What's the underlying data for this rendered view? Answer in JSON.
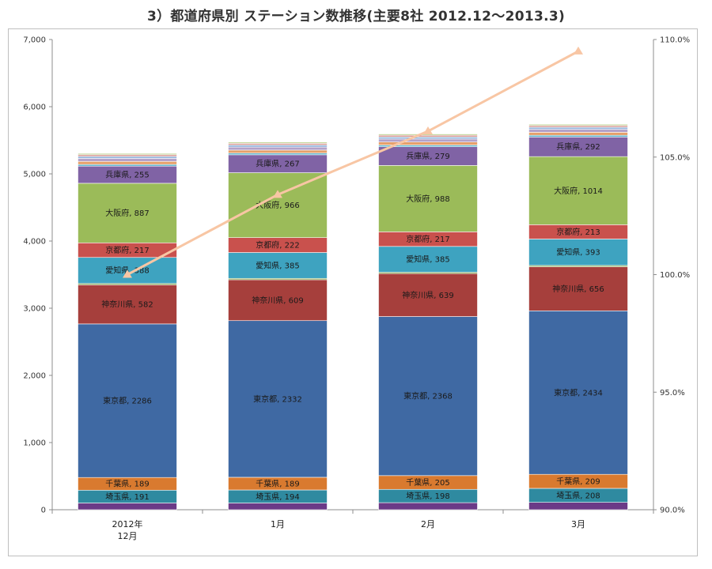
{
  "title": "3）都道府県別 ステーション数推移(主要8社 2012.12〜2013.3)",
  "chart_data": {
    "type": "bar",
    "stacked": true,
    "categories": [
      [
        "2012年",
        "12月"
      ],
      [
        "1月"
      ],
      [
        "2月"
      ],
      [
        "3月"
      ]
    ],
    "y_left": {
      "min": 0,
      "max": 7000,
      "ticks": [
        "0",
        "1,000",
        "2,000",
        "3,000",
        "4,000",
        "5,000",
        "6,000",
        "7,000"
      ]
    },
    "y_right": {
      "min": 90,
      "max": 110,
      "ticks": [
        "90.0%",
        "95.0%",
        "100.0%",
        "105.0%",
        "110.0%"
      ]
    },
    "series": [
      {
        "name": "",
        "color": "#6b3a87",
        "values": [
          100,
          100,
          105,
          110
        ]
      },
      {
        "name": "埼玉県",
        "color": "#2f8aa0",
        "values": [
          191,
          194,
          198,
          208
        ]
      },
      {
        "name": "千葉県",
        "color": "#d97a2f",
        "values": [
          189,
          189,
          205,
          209
        ]
      },
      {
        "name": "東京都",
        "color": "#3f69a3",
        "values": [
          2286,
          2332,
          2368,
          2434
        ]
      },
      {
        "name": "神奈川県",
        "color": "#a63f3c",
        "values": [
          582,
          609,
          639,
          656
        ]
      },
      {
        "name": "",
        "color": "#86a84e",
        "values": [
          20,
          20,
          20,
          20
        ]
      },
      {
        "name": "愛知県",
        "color": "#3ea3c0",
        "values": [
          388,
          385,
          385,
          393
        ]
      },
      {
        "name": "京都府",
        "color": "#c9514d",
        "values": [
          217,
          222,
          217,
          213
        ]
      },
      {
        "name": "大阪府",
        "color": "#9bbb59",
        "values": [
          887,
          966,
          988,
          1014
        ]
      },
      {
        "name": "兵庫県",
        "color": "#8063a5",
        "values": [
          255,
          267,
          279,
          292
        ]
      },
      {
        "name": "",
        "color": "#5cb5cf",
        "values": [
          25,
          25,
          25,
          25
        ]
      },
      {
        "name": "",
        "color": "#e6a06a",
        "values": [
          45,
          45,
          45,
          45
        ]
      },
      {
        "name": "",
        "color": "#b4a2c9",
        "values": [
          45,
          45,
          45,
          45
        ]
      },
      {
        "name": "",
        "color": "#95b5dc",
        "values": [
          30,
          30,
          30,
          30
        ]
      },
      {
        "name": "",
        "color": "#d99894",
        "values": [
          25,
          25,
          25,
          25
        ]
      },
      {
        "name": "",
        "color": "#c3d69b",
        "values": [
          20,
          20,
          20,
          20
        ]
      }
    ],
    "growth_line": {
      "color": "#f8c6a4",
      "values": [
        100.0,
        103.4,
        106.1,
        109.5
      ]
    },
    "segment_label_format": "{name}, {value}"
  }
}
